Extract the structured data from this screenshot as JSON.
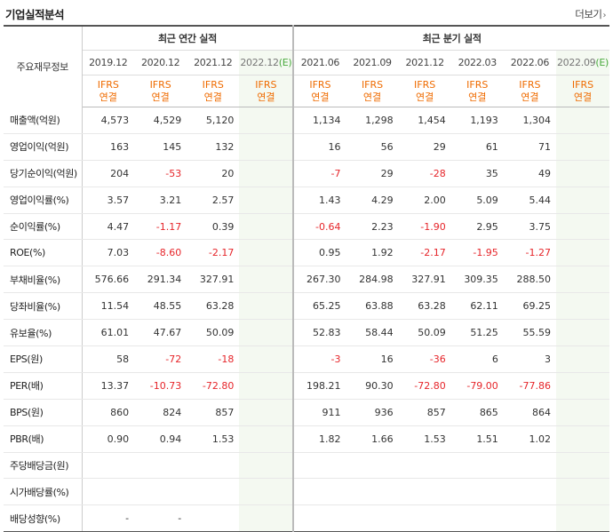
{
  "section": {
    "title": "기업실적분석",
    "more_label": "더보기",
    "more_icon": "chevron-right-icon"
  },
  "table": {
    "corner_label": "주요재무정보",
    "annual_group_label": "최근 연간 실적",
    "quarter_group_label": "최근 분기 실적",
    "annual_periods": [
      {
        "label": "2019.12",
        "estimate": false
      },
      {
        "label": "2020.12",
        "estimate": false
      },
      {
        "label": "2021.12",
        "estimate": false
      },
      {
        "label": "2022.12",
        "estimate": true
      }
    ],
    "quarter_periods": [
      {
        "label": "2021.06",
        "estimate": false
      },
      {
        "label": "2021.09",
        "estimate": false
      },
      {
        "label": "2021.12",
        "estimate": false
      },
      {
        "label": "2022.03",
        "estimate": false
      },
      {
        "label": "2022.06",
        "estimate": false
      },
      {
        "label": "2022.09",
        "estimate": true
      }
    ],
    "estimate_mark": "(E)",
    "accounting_line1": "IFRS",
    "accounting_line2": "연결",
    "colors": {
      "negative": "#e6252a",
      "ifrs": "#ef6b00",
      "estimate_bg": "#f4f9f1",
      "estimate_mark": "#4aaa3e"
    },
    "rows": [
      {
        "label": "매출액(억원)",
        "values": [
          "4,573",
          "4,529",
          "5,120",
          "",
          "1,134",
          "1,298",
          "1,454",
          "1,193",
          "1,304",
          ""
        ]
      },
      {
        "label": "영업이익(억원)",
        "values": [
          "163",
          "145",
          "132",
          "",
          "16",
          "56",
          "29",
          "61",
          "71",
          ""
        ]
      },
      {
        "label": "당기순이익(억원)",
        "values": [
          "204",
          "-53",
          "20",
          "",
          "-7",
          "29",
          "-28",
          "35",
          "49",
          ""
        ]
      },
      {
        "label": "영업이익률(%)",
        "values": [
          "3.57",
          "3.21",
          "2.57",
          "",
          "1.43",
          "4.29",
          "2.00",
          "5.09",
          "5.44",
          ""
        ]
      },
      {
        "label": "순이익률(%)",
        "values": [
          "4.47",
          "-1.17",
          "0.39",
          "",
          "-0.64",
          "2.23",
          "-1.90",
          "2.95",
          "3.75",
          ""
        ]
      },
      {
        "label": "ROE(%)",
        "values": [
          "7.03",
          "-8.60",
          "-2.17",
          "",
          "0.95",
          "1.92",
          "-2.17",
          "-1.95",
          "-1.27",
          ""
        ]
      },
      {
        "label": "부채비율(%)",
        "values": [
          "576.66",
          "291.34",
          "327.91",
          "",
          "267.30",
          "284.98",
          "327.91",
          "309.35",
          "288.50",
          ""
        ]
      },
      {
        "label": "당좌비율(%)",
        "values": [
          "11.54",
          "48.55",
          "63.28",
          "",
          "65.25",
          "63.88",
          "63.28",
          "62.11",
          "69.25",
          ""
        ]
      },
      {
        "label": "유보율(%)",
        "values": [
          "61.01",
          "47.67",
          "50.09",
          "",
          "52.83",
          "58.44",
          "50.09",
          "51.25",
          "55.59",
          ""
        ]
      },
      {
        "label": "EPS(원)",
        "values": [
          "58",
          "-72",
          "-18",
          "",
          "-3",
          "16",
          "-36",
          "6",
          "3",
          ""
        ]
      },
      {
        "label": "PER(배)",
        "values": [
          "13.37",
          "-10.73",
          "-72.80",
          "",
          "198.21",
          "90.30",
          "-72.80",
          "-79.00",
          "-77.86",
          ""
        ]
      },
      {
        "label": "BPS(원)",
        "values": [
          "860",
          "824",
          "857",
          "",
          "911",
          "936",
          "857",
          "865",
          "864",
          ""
        ]
      },
      {
        "label": "PBR(배)",
        "values": [
          "0.90",
          "0.94",
          "1.53",
          "",
          "1.82",
          "1.66",
          "1.53",
          "1.51",
          "1.02",
          ""
        ]
      },
      {
        "label": "주당배당금(원)",
        "values": [
          "",
          "",
          "",
          "",
          "",
          "",
          "",
          "",
          "",
          ""
        ]
      },
      {
        "label": "시가배당률(%)",
        "values": [
          "",
          "",
          "",
          "",
          "",
          "",
          "",
          "",
          "",
          ""
        ]
      },
      {
        "label": "배당성향(%)",
        "values": [
          "-",
          "-",
          "",
          "",
          "",
          "",
          "",
          "",
          "",
          ""
        ]
      }
    ],
    "separator_before_rows": [
      3,
      6,
      9,
      13
    ]
  }
}
